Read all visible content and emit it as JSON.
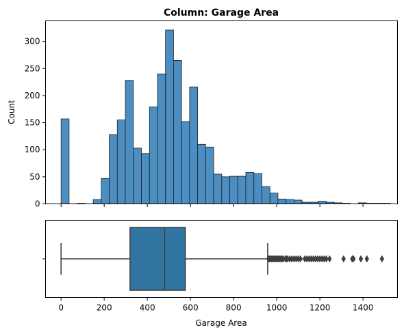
{
  "chart_data": [
    {
      "type": "histogram",
      "title": "Column: Garage Area",
      "ylabel": "Count",
      "xlabel": "",
      "xlim": [
        -72,
        1560
      ],
      "ylim": [
        0,
        338
      ],
      "xticks": [
        0,
        200,
        400,
        600,
        800,
        1000,
        1200,
        1400
      ],
      "yticks": [
        0,
        50,
        100,
        150,
        200,
        250,
        300
      ],
      "bin_width": 37.25,
      "bin_start": 0,
      "counts": [
        157,
        0,
        1,
        0,
        8,
        47,
        128,
        155,
        228,
        103,
        93,
        179,
        240,
        321,
        265,
        152,
        216,
        110,
        105,
        55,
        50,
        51,
        51,
        58,
        56,
        32,
        20,
        9,
        8,
        7,
        3,
        3,
        5,
        3,
        2,
        1,
        0,
        2,
        1,
        1,
        1
      ],
      "bar_color": "#4c8ec2",
      "edge_color": "#1f1f1f"
    },
    {
      "type": "box",
      "xlabel": "Garage Area",
      "xlim": [
        -72,
        1560
      ],
      "xticks": [
        0,
        200,
        400,
        600,
        800,
        1000,
        1200,
        1400
      ],
      "whisker_low": 0,
      "q1": 320,
      "median": 480,
      "q3": 576,
      "whisker_high": 958,
      "outliers": [
        962,
        966,
        970,
        975,
        980,
        985,
        990,
        995,
        1000,
        1005,
        1010,
        1015,
        1020,
        1025,
        1030,
        1040,
        1045,
        1050,
        1060,
        1070,
        1080,
        1090,
        1100,
        1110,
        1130,
        1140,
        1150,
        1160,
        1170,
        1180,
        1190,
        1200,
        1210,
        1220,
        1230,
        1245,
        1310,
        1350,
        1356,
        1390,
        1418,
        1488
      ],
      "box_color": "#3274a1",
      "line_color": "#3f3f3f"
    }
  ]
}
